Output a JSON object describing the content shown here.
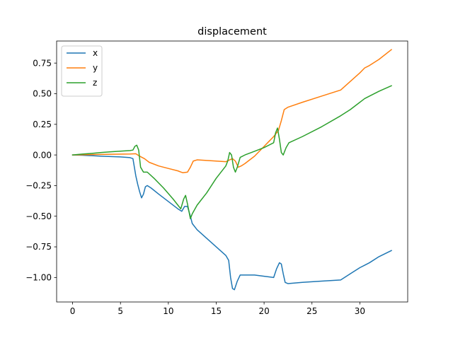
{
  "chart_data": {
    "type": "line",
    "title": "displacement",
    "xlabel": "",
    "ylabel": "",
    "xlim": [
      -1.67,
      35.0
    ],
    "ylim": [
      -1.2,
      0.93
    ],
    "xticks": [
      0,
      5,
      10,
      15,
      20,
      25,
      30
    ],
    "xtick_labels": [
      "0",
      "5",
      "10",
      "15",
      "20",
      "25",
      "30"
    ],
    "yticks": [
      -1.0,
      -0.75,
      -0.5,
      -0.25,
      0.0,
      0.25,
      0.5,
      0.75
    ],
    "ytick_labels": [
      "−1.00",
      "−0.75",
      "−0.50",
      "−0.25",
      "0.00",
      "0.25",
      "0.50",
      "0.75"
    ],
    "grid": false,
    "legend_position": "top-left",
    "series": [
      {
        "name": "x",
        "color": "#1f77b4",
        "points": [
          [
            0,
            0.0
          ],
          [
            1,
            -0.002
          ],
          [
            2,
            -0.006
          ],
          [
            3,
            -0.01
          ],
          [
            4,
            -0.013
          ],
          [
            5,
            -0.016
          ],
          [
            6,
            -0.022
          ],
          [
            6.3,
            -0.03
          ],
          [
            6.6,
            -0.17
          ],
          [
            6.8,
            -0.24
          ],
          [
            7.0,
            -0.3
          ],
          [
            7.2,
            -0.35
          ],
          [
            7.4,
            -0.32
          ],
          [
            7.6,
            -0.26
          ],
          [
            7.8,
            -0.25
          ],
          [
            8.2,
            -0.27
          ],
          [
            9,
            -0.32
          ],
          [
            10,
            -0.38
          ],
          [
            11,
            -0.44
          ],
          [
            11.4,
            -0.46
          ],
          [
            11.7,
            -0.42
          ],
          [
            12.0,
            -0.42
          ],
          [
            12.3,
            -0.5
          ],
          [
            12.5,
            -0.56
          ],
          [
            13,
            -0.61
          ],
          [
            14,
            -0.68
          ],
          [
            15,
            -0.75
          ],
          [
            16,
            -0.82
          ],
          [
            16.3,
            -0.86
          ],
          [
            16.5,
            -1.0
          ],
          [
            16.7,
            -1.09
          ],
          [
            16.9,
            -1.1
          ],
          [
            17.2,
            -1.03
          ],
          [
            17.5,
            -0.98
          ],
          [
            18,
            -0.98
          ],
          [
            19,
            -0.98
          ],
          [
            20,
            -0.99
          ],
          [
            21,
            -1.0
          ],
          [
            21.3,
            -0.93
          ],
          [
            21.6,
            -0.88
          ],
          [
            21.8,
            -0.89
          ],
          [
            22.0,
            -0.97
          ],
          [
            22.2,
            -1.04
          ],
          [
            22.5,
            -1.05
          ],
          [
            24,
            -1.04
          ],
          [
            26,
            -1.03
          ],
          [
            28,
            -1.02
          ],
          [
            29,
            -0.97
          ],
          [
            30,
            -0.92
          ],
          [
            30.5,
            -0.9
          ],
          [
            31,
            -0.88
          ],
          [
            32,
            -0.83
          ],
          [
            33.3,
            -0.78
          ]
        ]
      },
      {
        "name": "y",
        "color": "#ff7f0e",
        "points": [
          [
            0,
            0.0
          ],
          [
            2,
            0.003
          ],
          [
            4,
            0.006
          ],
          [
            6,
            0.008
          ],
          [
            6.6,
            0.01
          ],
          [
            7.0,
            -0.01
          ],
          [
            7.5,
            -0.03
          ],
          [
            8,
            -0.06
          ],
          [
            9,
            -0.09
          ],
          [
            10,
            -0.11
          ],
          [
            11,
            -0.13
          ],
          [
            11.5,
            -0.145
          ],
          [
            12,
            -0.14
          ],
          [
            12.3,
            -0.1
          ],
          [
            12.6,
            -0.05
          ],
          [
            13,
            -0.04
          ],
          [
            14,
            -0.045
          ],
          [
            15,
            -0.05
          ],
          [
            16,
            -0.055
          ],
          [
            16.4,
            -0.04
          ],
          [
            16.7,
            -0.03
          ],
          [
            17.0,
            -0.05
          ],
          [
            17.3,
            -0.1
          ],
          [
            17.6,
            -0.09
          ],
          [
            18,
            -0.07
          ],
          [
            19,
            -0.01
          ],
          [
            20,
            0.07
          ],
          [
            21,
            0.15
          ],
          [
            21.5,
            0.2
          ],
          [
            21.8,
            0.28
          ],
          [
            22.1,
            0.37
          ],
          [
            22.5,
            0.39
          ],
          [
            24,
            0.43
          ],
          [
            26,
            0.48
          ],
          [
            28,
            0.53
          ],
          [
            29,
            0.6
          ],
          [
            30,
            0.67
          ],
          [
            30.5,
            0.71
          ],
          [
            31,
            0.73
          ],
          [
            32,
            0.78
          ],
          [
            33.3,
            0.86
          ]
        ]
      },
      {
        "name": "z",
        "color": "#2ca02c",
        "points": [
          [
            0,
            0.0
          ],
          [
            1,
            0.007
          ],
          [
            2,
            0.013
          ],
          [
            3,
            0.02
          ],
          [
            4,
            0.026
          ],
          [
            5,
            0.031
          ],
          [
            6,
            0.036
          ],
          [
            6.3,
            0.04
          ],
          [
            6.5,
            0.07
          ],
          [
            6.7,
            0.08
          ],
          [
            6.9,
            0.04
          ],
          [
            7.1,
            -0.1
          ],
          [
            7.4,
            -0.14
          ],
          [
            7.8,
            -0.14
          ],
          [
            8.5,
            -0.19
          ],
          [
            9.5,
            -0.27
          ],
          [
            10.5,
            -0.36
          ],
          [
            11,
            -0.41
          ],
          [
            11.3,
            -0.44
          ],
          [
            11.6,
            -0.36
          ],
          [
            11.8,
            -0.33
          ],
          [
            12.0,
            -0.4
          ],
          [
            12.2,
            -0.48
          ],
          [
            12.3,
            -0.52
          ],
          [
            12.5,
            -0.48
          ],
          [
            13,
            -0.41
          ],
          [
            14,
            -0.31
          ],
          [
            15,
            -0.19
          ],
          [
            16,
            -0.09
          ],
          [
            16.2,
            -0.05
          ],
          [
            16.4,
            0.02
          ],
          [
            16.6,
            0.0
          ],
          [
            16.8,
            -0.1
          ],
          [
            17.0,
            -0.14
          ],
          [
            17.2,
            -0.1
          ],
          [
            17.5,
            -0.02
          ],
          [
            18,
            0.0
          ],
          [
            19,
            0.03
          ],
          [
            20,
            0.06
          ],
          [
            21,
            0.1
          ],
          [
            21.2,
            0.18
          ],
          [
            21.4,
            0.22
          ],
          [
            21.6,
            0.13
          ],
          [
            21.8,
            0.02
          ],
          [
            22.0,
            0.0
          ],
          [
            22.3,
            0.06
          ],
          [
            22.6,
            0.1
          ],
          [
            24,
            0.15
          ],
          [
            26,
            0.23
          ],
          [
            28,
            0.32
          ],
          [
            29,
            0.37
          ],
          [
            30,
            0.43
          ],
          [
            30.5,
            0.46
          ],
          [
            31,
            0.48
          ],
          [
            32,
            0.52
          ],
          [
            33.3,
            0.565
          ]
        ]
      }
    ]
  }
}
